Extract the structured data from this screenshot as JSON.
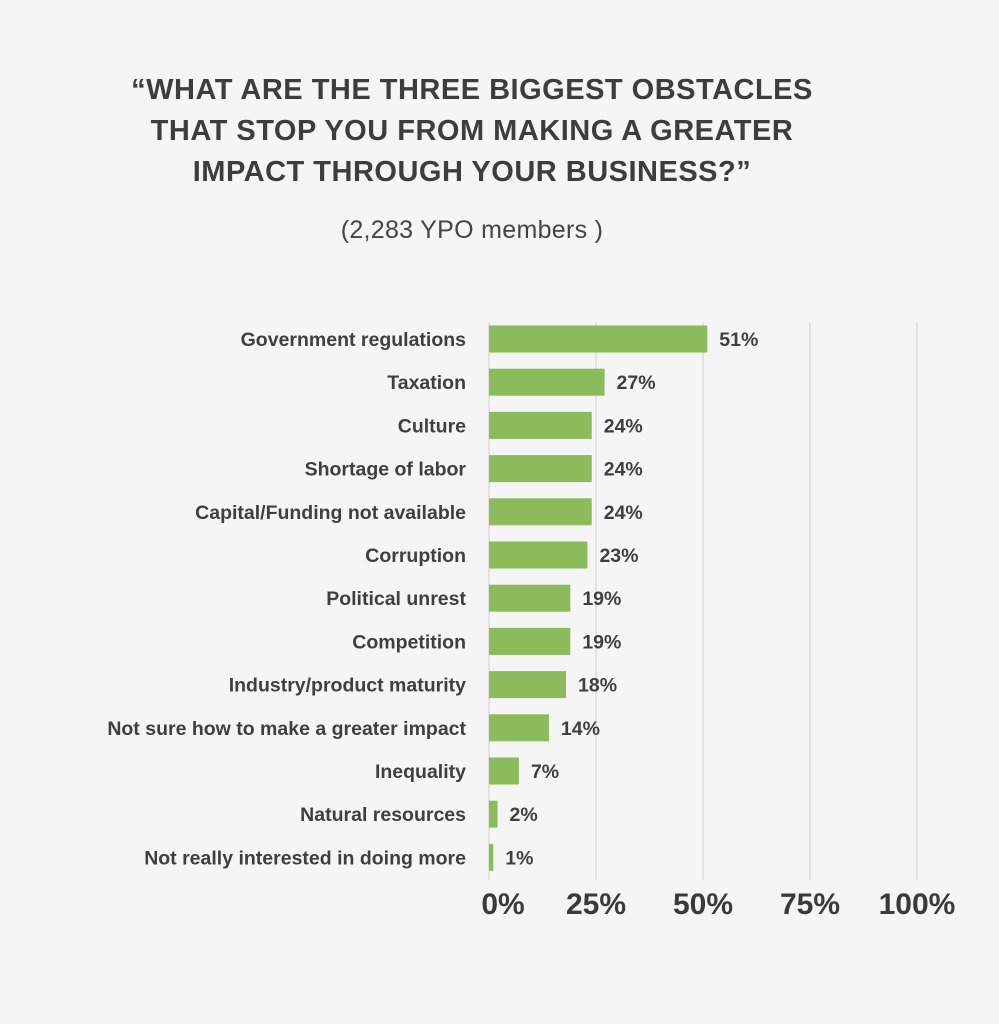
{
  "title_lines": [
    "“WHAT ARE THE THREE BIGGEST OBSTACLES",
    "THAT STOP YOU FROM MAKING A GREATER",
    "IMPACT THROUGH YOUR BUSINESS?”"
  ],
  "subtitle": "(2,283 YPO members )",
  "chart_data": {
    "type": "bar",
    "orientation": "horizontal",
    "categories": [
      "Government regulations",
      "Taxation",
      "Culture",
      "Shortage of labor",
      "Capital/Funding not available",
      "Corruption",
      "Political unrest",
      "Competition",
      "Industry/product maturity",
      "Not sure how to make a greater impact",
      "Inequality",
      "Natural resources",
      "Not really interested in doing more"
    ],
    "values": [
      51,
      27,
      24,
      24,
      24,
      23,
      19,
      19,
      18,
      14,
      7,
      2,
      1
    ],
    "value_labels": [
      "51%",
      "27%",
      "24%",
      "24%",
      "24%",
      "23%",
      "19%",
      "19%",
      "18%",
      "14%",
      "7%",
      "2%",
      "1%"
    ],
    "xlim": [
      0,
      100
    ],
    "xticks": [
      0,
      25,
      50,
      75,
      100
    ],
    "xtick_labels": [
      "0%",
      "25%",
      "50%",
      "75%",
      "100%"
    ],
    "grid": true,
    "bar_color": "#8cbb5c",
    "grid_color": "#e2e2e2"
  }
}
